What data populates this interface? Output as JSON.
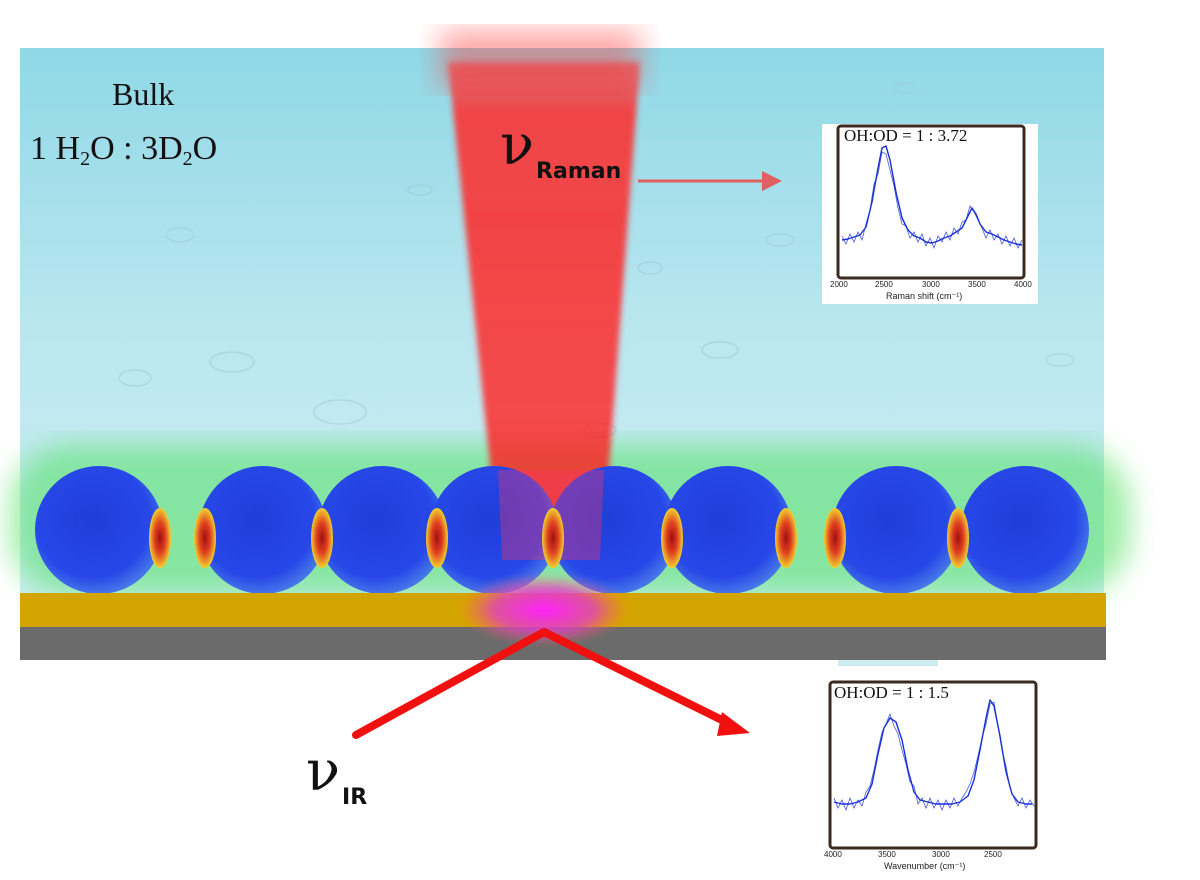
{
  "labels": {
    "bulk": "Bulk",
    "ratio_prefix": "1 H",
    "ratio_sub1": "2",
    "ratio_mid": "O : 3D",
    "ratio_sub2": "2",
    "ratio_suffix": "O",
    "nu_symbol": "ν",
    "raman_sub": "Raman",
    "ir_sub": "IR"
  },
  "raman_inset": {
    "title": "OH:OD = 1 : 3.72",
    "xlabel": "Raman shift (cm⁻¹)",
    "ticks": [
      "2000",
      "2500",
      "3000",
      "3500",
      "4000"
    ]
  },
  "ir_inset": {
    "title": "OH:OD = 1 : 1.5",
    "xlabel": "Wavenumber (cm⁻¹)",
    "ticks": [
      "4000",
      "3500",
      "3000",
      "2500"
    ]
  },
  "colors": {
    "water": "#b9e6ef",
    "gold": "#d4a400",
    "substrate": "#6b6b6b",
    "particle": "#2040e0",
    "beam": "#ff2020",
    "spectrum": "#1a2fd6"
  }
}
